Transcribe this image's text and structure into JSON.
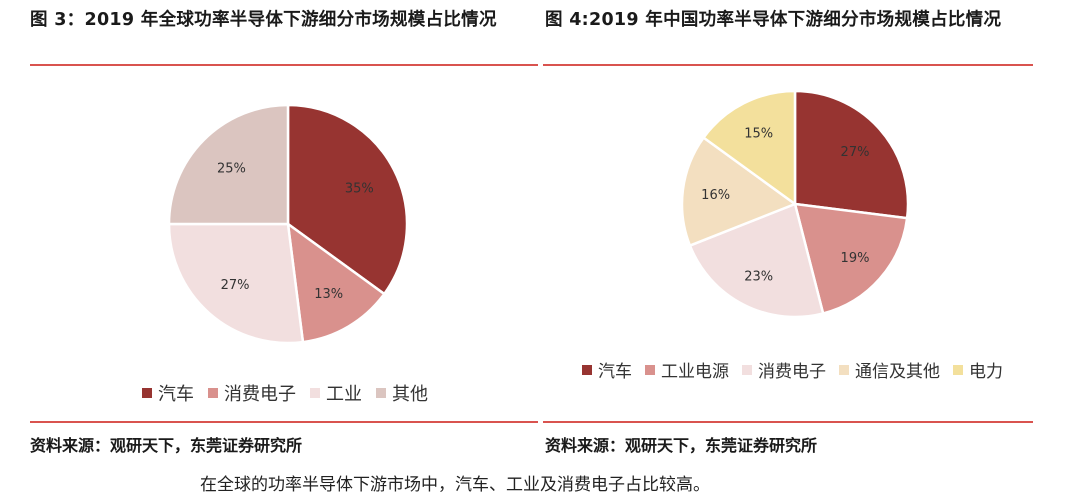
{
  "figures": [
    {
      "title": "图 3：2019 年全球功率半导体下游细分市场规模占比情况",
      "source": "资料来源：观研天下，东莞证券研究所"
    },
    {
      "title": "图 4:2019 年中国功率半导体下游细分市场规模占比情况",
      "source": "资料来源：观研天下，东莞证券研究所"
    }
  ],
  "bottom_text": "在全球的功率半导体下游市场中，汽车、工业及消费电子占比较高。",
  "chart_data": [
    {
      "type": "pie",
      "title": "",
      "categories": [
        "汽车",
        "消费电子",
        "工业",
        "其他"
      ],
      "values": [
        35,
        13,
        27,
        25
      ],
      "value_labels": [
        "35%",
        "13%",
        "27%",
        "25%"
      ],
      "colors": [
        "#973431",
        "#d9918d",
        "#f2dfdf",
        "#dbc5c0"
      ],
      "legend_position": "bottom"
    },
    {
      "type": "pie",
      "title": "",
      "categories": [
        "汽车",
        "工业电源",
        "消费电子",
        "通信及其他",
        "电力"
      ],
      "values": [
        27,
        19,
        23,
        16,
        15
      ],
      "value_labels": [
        "27%",
        "19%",
        "23%",
        "16%",
        "15%"
      ],
      "colors": [
        "#973431",
        "#d9918d",
        "#f2dfdf",
        "#f3dfc0",
        "#f3e09c"
      ],
      "legend_position": "bottom"
    }
  ]
}
